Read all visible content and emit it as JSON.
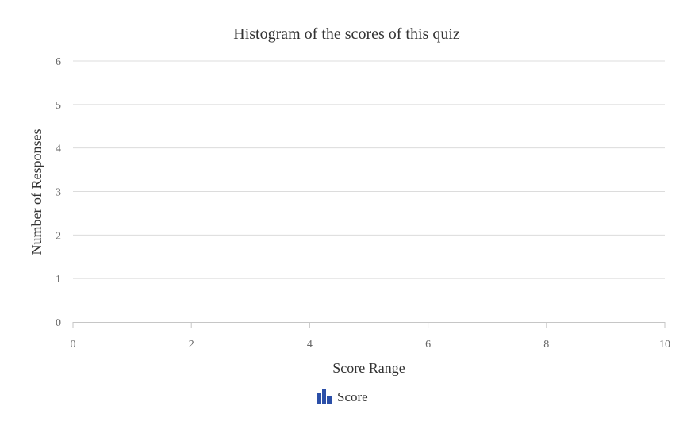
{
  "chart_data": {
    "type": "bar",
    "title": "Histogram of the scores of this quiz",
    "xlabel": "Score Range",
    "ylabel": "Number of Responses",
    "xlim": [
      0,
      10
    ],
    "ylim": [
      0,
      6
    ],
    "x_ticks": [
      "0",
      "2",
      "4",
      "6",
      "8",
      "10"
    ],
    "y_ticks": [
      "0",
      "1",
      "2",
      "3",
      "4",
      "5",
      "6"
    ],
    "grid": true,
    "legend_position": "bottom-center",
    "series": [
      {
        "name": "Score",
        "values": [],
        "color": "#2b4fa8"
      }
    ]
  },
  "legend": {
    "icon": "bar-chart-icon"
  }
}
